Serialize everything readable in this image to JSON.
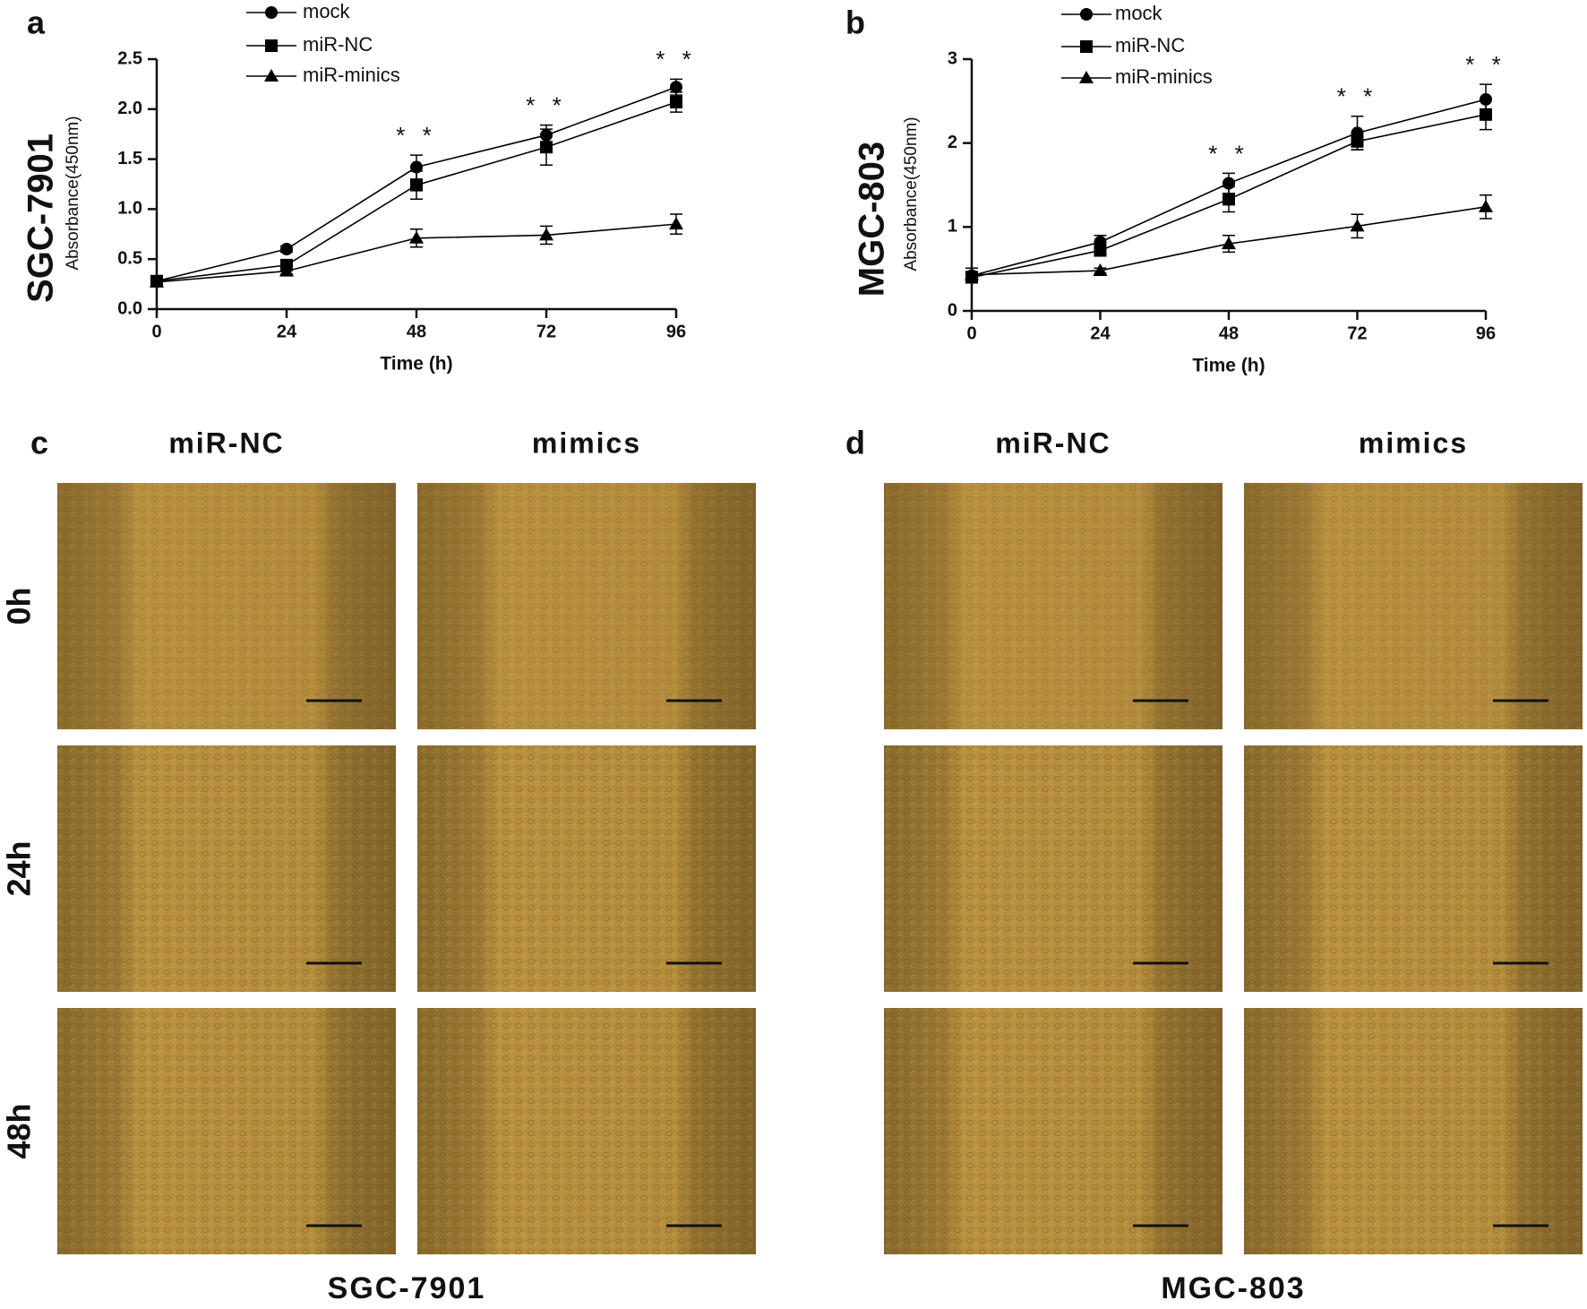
{
  "chart_data": [
    {
      "type": "line",
      "panel_label": "a",
      "side_title": "SGC-7901",
      "y_label": "Absorbance(450nm)",
      "x_label": "Time (h)",
      "x": [
        0,
        24,
        48,
        72,
        96
      ],
      "xlim": [
        0,
        96
      ],
      "xticks": [
        0,
        24,
        48,
        72,
        96
      ],
      "ylim": [
        0,
        2.5
      ],
      "yticks": [
        {
          "value": 0,
          "label": "0.0"
        },
        0.5,
        {
          "value": 1,
          "label": "1.0"
        },
        1.5,
        {
          "value": 2,
          "label": "2.0"
        },
        2.5
      ],
      "series": [
        {
          "name": "mock",
          "color": "#000000",
          "marker": "circle",
          "values": [
            0.28,
            0.6,
            1.42,
            1.74,
            2.22
          ],
          "errors": [
            0.02,
            0.03,
            0.12,
            0.1,
            0.08
          ]
        },
        {
          "name": "miR-NC",
          "color": "#000000",
          "marker": "square",
          "values": [
            0.28,
            0.44,
            1.24,
            1.62,
            2.07
          ],
          "errors": [
            0.02,
            0.04,
            0.14,
            0.18,
            0.1
          ]
        },
        {
          "name": "miR-minics",
          "color": "#000000",
          "marker": "triangle",
          "values": [
            0.27,
            0.38,
            0.71,
            0.74,
            0.85
          ],
          "errors": [
            0.02,
            0.03,
            0.09,
            0.09,
            0.1
          ]
        }
      ],
      "annotations": [
        {
          "x": 48,
          "text": "* *"
        },
        {
          "x": 72,
          "text": "* *"
        },
        {
          "x": 96,
          "text": "* *"
        }
      ]
    },
    {
      "type": "line",
      "panel_label": "b",
      "side_title": "MGC-803",
      "y_label": "Absorbance(450nm)",
      "x_label": "Time (h)",
      "x": [
        0,
        24,
        48,
        72,
        96
      ],
      "xlim": [
        0,
        96
      ],
      "xticks": [
        0,
        24,
        48,
        72,
        96
      ],
      "ylim": [
        0,
        3
      ],
      "yticks": [
        0,
        1,
        2,
        3
      ],
      "series": [
        {
          "name": "mock",
          "color": "#000000",
          "marker": "circle",
          "values": [
            0.42,
            0.82,
            1.52,
            2.12,
            2.52
          ],
          "errors": [
            0.05,
            0.08,
            0.12,
            0.2,
            0.18
          ]
        },
        {
          "name": "miR-NC",
          "color": "#000000",
          "marker": "square",
          "values": [
            0.4,
            0.72,
            1.33,
            2.02,
            2.34
          ],
          "errors": [
            0.05,
            0.06,
            0.15,
            0.1,
            0.18
          ]
        },
        {
          "name": "miR-minics",
          "color": "#000000",
          "marker": "triangle",
          "values": [
            0.43,
            0.48,
            0.8,
            1.01,
            1.24
          ],
          "errors": [
            0.08,
            0.03,
            0.1,
            0.14,
            0.14
          ]
        }
      ],
      "annotations": [
        {
          "x": 48,
          "text": "* *"
        },
        {
          "x": 72,
          "text": "* *"
        },
        {
          "x": 96,
          "text": "* *"
        }
      ]
    }
  ],
  "wound_healing": {
    "row_labels": [
      "0h",
      "24h",
      "48h"
    ],
    "panels": [
      {
        "panel_label": "c",
        "columns": [
          "miR-NC",
          "mimics"
        ],
        "caption": "SGC-7901"
      },
      {
        "panel_label": "d",
        "columns": [
          "miR-NC",
          "mimics"
        ],
        "caption": "MGC-803"
      }
    ]
  }
}
